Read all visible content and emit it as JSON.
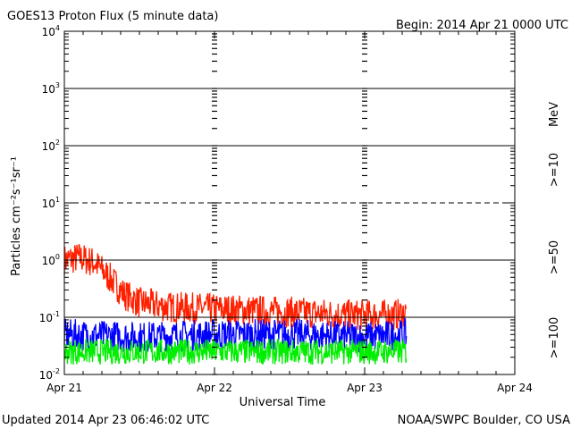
{
  "chart_data": {
    "type": "line",
    "title": "GOES13 Proton Flux (5 minute data)",
    "subtitle": "Begin: 2014 Apr 21 0000 UTC",
    "xlabel": "Universal Time",
    "ylabel": "Particles cm⁻²s⁻¹sr⁻¹",
    "footer_left": "Updated 2014 Apr 23 06:46:02 UTC",
    "footer_right": "NOAA/SWPC Boulder, CO USA",
    "y_scale": "log",
    "ylim": [
      0.01,
      10000
    ],
    "y_ticks": [
      {
        "base": "10",
        "exp": "-2"
      },
      {
        "base": "10",
        "exp": "-1"
      },
      {
        "base": "10",
        "exp": "0"
      },
      {
        "base": "10",
        "exp": "1"
      },
      {
        "base": "10",
        "exp": "2"
      },
      {
        "base": "10",
        "exp": "3"
      },
      {
        "base": "10",
        "exp": "4"
      }
    ],
    "x_ticks": [
      "Apr 21",
      "Apr 22",
      "Apr 23",
      "Apr 24"
    ],
    "xlim_days": [
      0,
      3
    ],
    "threshold_lines": [
      {
        "value": 10,
        "style": "dashed"
      },
      {
        "value": 0.1,
        "style": "solid"
      }
    ],
    "grid": true,
    "series": [
      {
        "name": ">=10 MeV",
        "color": "#ff2000",
        "x_days": [
          0,
          0.1,
          0.2,
          0.3,
          0.4,
          0.5,
          0.7,
          1.0,
          1.3,
          1.6,
          1.9,
          2.2,
          2.28
        ],
        "values": [
          1.0,
          1.1,
          0.9,
          0.5,
          0.25,
          0.18,
          0.15,
          0.14,
          0.13,
          0.12,
          0.11,
          0.11,
          0.12
        ]
      },
      {
        "name": ">=50 MeV",
        "color": "#0000ff",
        "x_days": [
          0,
          0.5,
          1.0,
          1.5,
          2.0,
          2.28
        ],
        "values": [
          0.05,
          0.045,
          0.05,
          0.05,
          0.045,
          0.05
        ]
      },
      {
        "name": ">=100 MeV",
        "color": "#00ee00",
        "x_days": [
          0,
          0.5,
          1.0,
          1.5,
          2.0,
          2.28
        ],
        "values": [
          0.025,
          0.025,
          0.025,
          0.025,
          0.025,
          0.025
        ]
      }
    ],
    "legend": [
      {
        "label": ">=10",
        "color": "#ff2000"
      },
      {
        "label": ">=50",
        "color": "#0000ff"
      },
      {
        "label": ">=100",
        "color": "#00ee00"
      },
      {
        "label": "MeV",
        "color": "#000000"
      }
    ]
  }
}
